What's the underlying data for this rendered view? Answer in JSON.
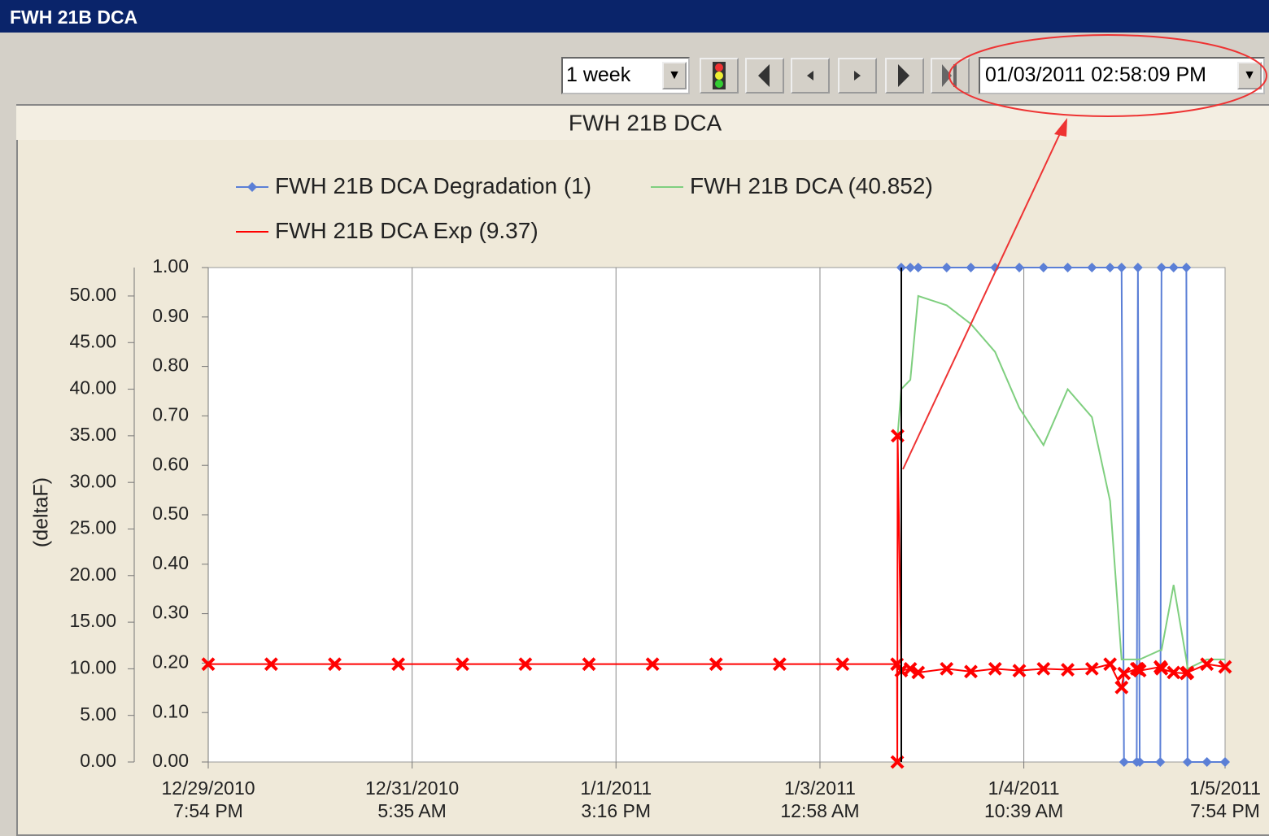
{
  "window": {
    "title": "FWH 21B DCA"
  },
  "toolbar": {
    "range": "1 week",
    "datetime": "01/03/2011 02:58:09 PM"
  },
  "chart_data": {
    "type": "line",
    "title": "FWH 21B DCA",
    "y_label": "(deltaF)",
    "x": [
      "2010-12-29T19:54",
      "2010-12-30T06:18",
      "2010-12-30T16:48",
      "2010-12-31T03:18",
      "2010-12-31T13:54",
      "2011-01-01T00:18",
      "2011-01-01T10:48",
      "2011-01-01T21:18",
      "2011-01-02T07:48",
      "2011-01-02T18:18",
      "2011-01-03T04:42",
      "2011-01-03T13:42",
      "2011-01-03T13:45",
      "2011-01-03T13:48",
      "2011-01-03T14:24",
      "2011-01-03T15:54",
      "2011-01-03T17:12",
      "2011-01-03T21:54",
      "2011-01-04T01:54",
      "2011-01-04T05:54",
      "2011-01-04T09:54",
      "2011-01-04T13:54",
      "2011-01-04T17:54",
      "2011-01-04T21:54",
      "2011-01-05T00:54",
      "2011-01-05T02:48",
      "2011-01-05T03:12",
      "2011-01-05T05:18",
      "2011-01-05T05:30",
      "2011-01-05T05:48",
      "2011-01-05T09:12",
      "2011-01-05T09:24",
      "2011-01-05T11:24",
      "2011-01-05T13:30",
      "2011-01-05T13:42",
      "2011-01-05T16:54",
      "2011-01-05T19:54"
    ],
    "series": [
      {
        "name": "FWH 21B DCA Degradation (1)",
        "color": "#5b7fd6",
        "marker": "diamond",
        "axis": "y2",
        "values": [
          null,
          null,
          null,
          null,
          null,
          null,
          null,
          null,
          null,
          null,
          null,
          null,
          null,
          null,
          1,
          1,
          1,
          1,
          1,
          1,
          1,
          1,
          1,
          1,
          1,
          1,
          0,
          0,
          1,
          0,
          0,
          1,
          1,
          1,
          0,
          0,
          0
        ]
      },
      {
        "name": "FWH 21B DCA (40.852)",
        "color": "#7fcf7f",
        "values": [
          null,
          null,
          null,
          null,
          null,
          null,
          null,
          null,
          null,
          null,
          null,
          null,
          null,
          35,
          40,
          41,
          50,
          49,
          47,
          44,
          38,
          34,
          40,
          37,
          28,
          11,
          11,
          11,
          11,
          11,
          12,
          12,
          19,
          11,
          10,
          11,
          11
        ]
      },
      {
        "name": "FWH 21B DCA Exp (9.37)",
        "color": "#ff0000",
        "marker": "x",
        "values": [
          10.5,
          10.5,
          10.5,
          10.5,
          10.5,
          10.5,
          10.5,
          10.5,
          10.5,
          10.5,
          10.5,
          10.5,
          0,
          35,
          9.8,
          10,
          9.6,
          10,
          9.7,
          10,
          9.8,
          10,
          9.9,
          10,
          10.5,
          8,
          9.5,
          10,
          10,
          9.8,
          10.2,
          10,
          9.6,
          9.5,
          9.6,
          10.5,
          10.2
        ]
      }
    ],
    "xlim": [
      "2010-12-29T19:54",
      "2011-01-05T19:54"
    ],
    "xticks": [
      {
        "value": "2010-12-29T19:54",
        "label": "12/29/2010\n7:54 PM"
      },
      {
        "value": "2010-12-31T05:35",
        "label": "12/31/2010\n5:35 AM"
      },
      {
        "value": "2011-01-01T15:16",
        "label": "1/1/2011\n3:16 PM"
      },
      {
        "value": "2011-01-03T00:58",
        "label": "1/3/2011\n12:58 AM"
      },
      {
        "value": "2011-01-04T10:39",
        "label": "1/4/2011\n10:39 AM"
      },
      {
        "value": "2011-01-05T19:54",
        "label": "1/5/2011\n7:54 PM"
      }
    ],
    "ylim": [
      0,
      53.05
    ],
    "yticks": [
      {
        "value": 0,
        "label": "0.00"
      },
      {
        "value": 5,
        "label": "5.00"
      },
      {
        "value": 10,
        "label": "10.00"
      },
      {
        "value": 15,
        "label": "15.00"
      },
      {
        "value": 20,
        "label": "20.00"
      },
      {
        "value": 25,
        "label": "25.00"
      },
      {
        "value": 30,
        "label": "30.00"
      },
      {
        "value": 35,
        "label": "35.00"
      },
      {
        "value": 40,
        "label": "40.00"
      },
      {
        "value": 45,
        "label": "45.00"
      },
      {
        "value": 50,
        "label": "50.00"
      }
    ],
    "y2lim": [
      0,
      1
    ],
    "y2ticks": [
      {
        "value": 0,
        "label": "0.00"
      },
      {
        "value": 0.1,
        "label": "0.10"
      },
      {
        "value": 0.2,
        "label": "0.20"
      },
      {
        "value": 0.3,
        "label": "0.30"
      },
      {
        "value": 0.4,
        "label": "0.40"
      },
      {
        "value": 0.5,
        "label": "0.50"
      },
      {
        "value": 0.6,
        "label": "0.60"
      },
      {
        "value": 0.7,
        "label": "0.70"
      },
      {
        "value": 0.8,
        "label": "0.80"
      },
      {
        "value": 0.9,
        "label": "0.90"
      },
      {
        "value": 1,
        "label": "1.00"
      }
    ],
    "grid": true
  }
}
